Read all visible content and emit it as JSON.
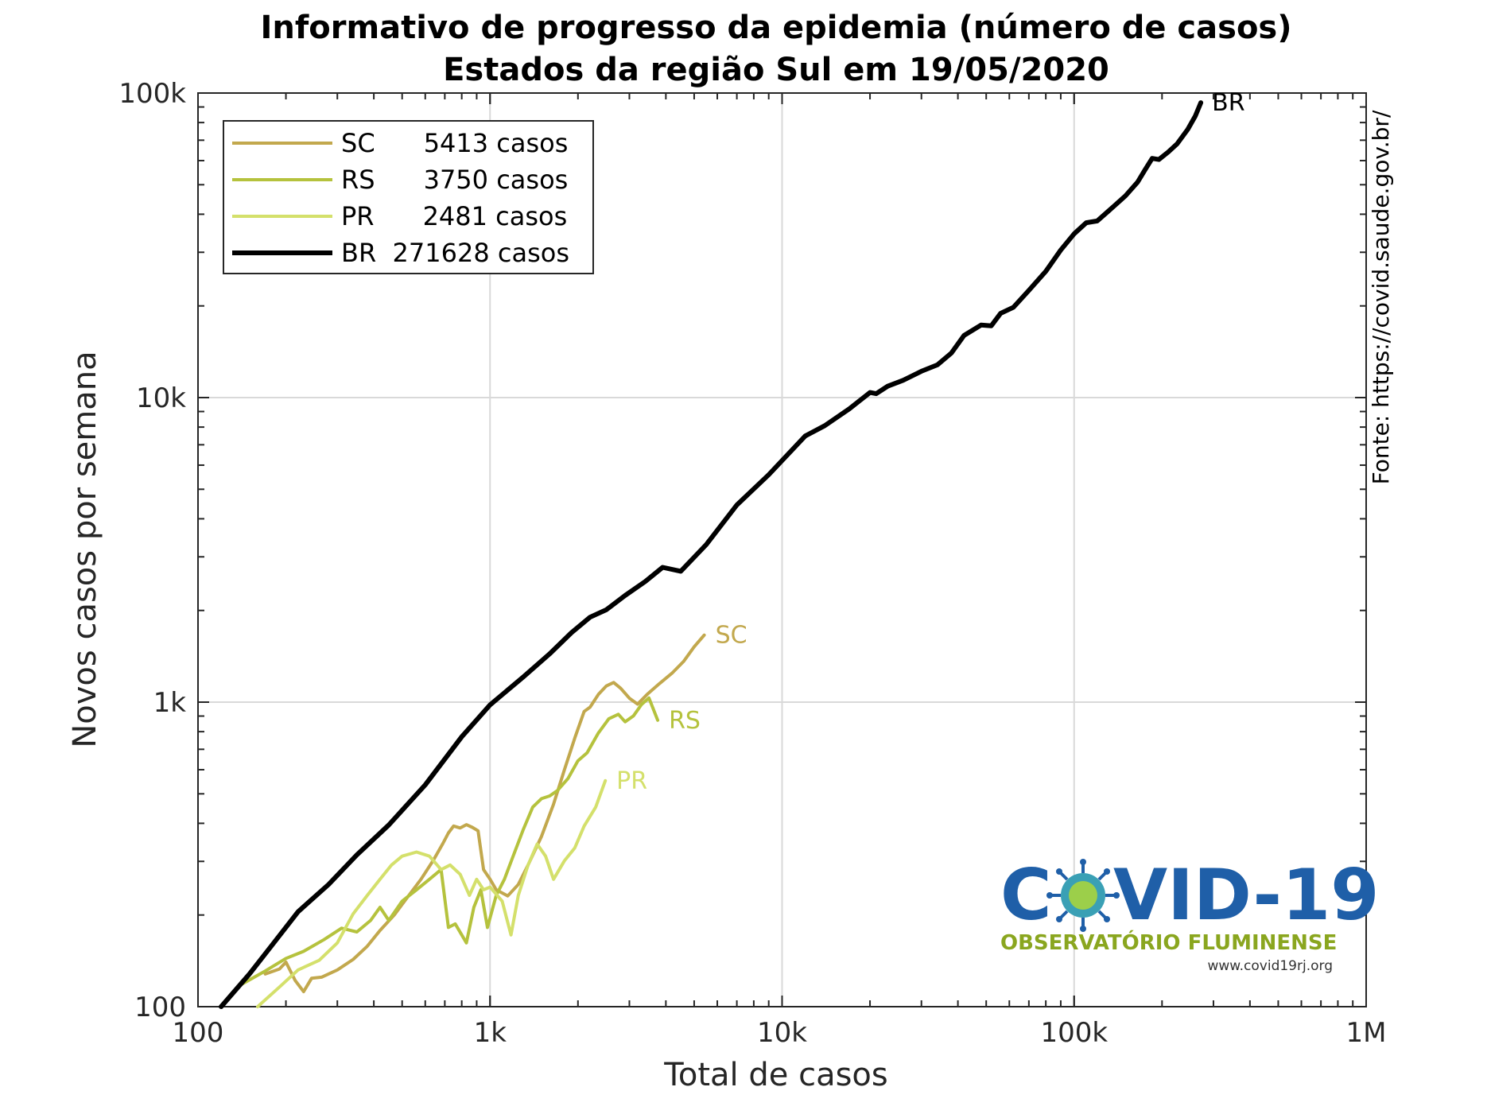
{
  "chart_data": {
    "type": "line",
    "title": "Informativo de progresso da epidemia (número de casos)",
    "subtitle": "Estados da região Sul em 19/05/2020",
    "xlabel": "Total de casos",
    "ylabel": "Novos casos por semana",
    "x_scale": "log",
    "y_scale": "log",
    "xlim": [
      100,
      1000000
    ],
    "ylim": [
      100,
      100000
    ],
    "x_ticks": [
      100,
      1000,
      10000,
      100000,
      1000000
    ],
    "x_tick_labels": [
      "100",
      "1k",
      "10k",
      "100k",
      "1M"
    ],
    "y_ticks": [
      100,
      1000,
      10000,
      100000
    ],
    "y_tick_labels": [
      "100",
      "1k",
      "10k",
      "100k"
    ],
    "grid": true,
    "legend_position": "top-left",
    "series": [
      {
        "name": "SC",
        "legend_label": "SC      5413 casos",
        "color": "#c2a84d",
        "points": [
          [
            170,
            128
          ],
          [
            190,
            133
          ],
          [
            200,
            140
          ],
          [
            215,
            122
          ],
          [
            230,
            112
          ],
          [
            245,
            124
          ],
          [
            265,
            125
          ],
          [
            300,
            132
          ],
          [
            340,
            143
          ],
          [
            380,
            158
          ],
          [
            420,
            178
          ],
          [
            470,
            200
          ],
          [
            520,
            228
          ],
          [
            580,
            262
          ],
          [
            640,
            303
          ],
          [
            690,
            344
          ],
          [
            720,
            372
          ],
          [
            750,
            392
          ],
          [
            790,
            386
          ],
          [
            830,
            396
          ],
          [
            870,
            388
          ],
          [
            910,
            378
          ],
          [
            950,
            282
          ],
          [
            1000,
            262
          ],
          [
            1050,
            242
          ],
          [
            1150,
            231
          ],
          [
            1250,
            252
          ],
          [
            1350,
            292
          ],
          [
            1500,
            362
          ],
          [
            1650,
            462
          ],
          [
            1800,
            602
          ],
          [
            1950,
            762
          ],
          [
            2100,
            932
          ],
          [
            2200,
            962
          ],
          [
            2350,
            1060
          ],
          [
            2500,
            1130
          ],
          [
            2650,
            1160
          ],
          [
            2800,
            1110
          ],
          [
            3000,
            1030
          ],
          [
            3200,
            985
          ],
          [
            3450,
            1060
          ],
          [
            3800,
            1150
          ],
          [
            4200,
            1245
          ],
          [
            4600,
            1360
          ],
          [
            5000,
            1520
          ],
          [
            5413,
            1660
          ]
        ],
        "end_label": "SC"
      },
      {
        "name": "RS",
        "legend_label": "RS      3750 casos",
        "color": "#b5c23d",
        "points": [
          [
            140,
            118
          ],
          [
            170,
            131
          ],
          [
            200,
            144
          ],
          [
            230,
            152
          ],
          [
            270,
            166
          ],
          [
            310,
            181
          ],
          [
            350,
            176
          ],
          [
            390,
            192
          ],
          [
            420,
            212
          ],
          [
            450,
            192
          ],
          [
            500,
            222
          ],
          [
            560,
            242
          ],
          [
            620,
            262
          ],
          [
            680,
            282
          ],
          [
            720,
            182
          ],
          [
            760,
            187
          ],
          [
            800,
            172
          ],
          [
            830,
            162
          ],
          [
            880,
            212
          ],
          [
            930,
            242
          ],
          [
            980,
            182
          ],
          [
            1050,
            232
          ],
          [
            1120,
            262
          ],
          [
            1200,
            312
          ],
          [
            1300,
            382
          ],
          [
            1400,
            452
          ],
          [
            1500,
            482
          ],
          [
            1600,
            492
          ],
          [
            1700,
            512
          ],
          [
            1850,
            562
          ],
          [
            2000,
            642
          ],
          [
            2150,
            682
          ],
          [
            2350,
            792
          ],
          [
            2550,
            882
          ],
          [
            2750,
            912
          ],
          [
            2900,
            862
          ],
          [
            3100,
            902
          ],
          [
            3300,
            982
          ],
          [
            3500,
            1032
          ],
          [
            3750,
            872
          ]
        ],
        "end_label": "RS"
      },
      {
        "name": "PR",
        "legend_label": "PR      2481 casos",
        "color": "#d4e06b",
        "points": [
          [
            160,
            100
          ],
          [
            190,
            116
          ],
          [
            220,
            132
          ],
          [
            260,
            142
          ],
          [
            300,
            162
          ],
          [
            340,
            202
          ],
          [
            380,
            232
          ],
          [
            420,
            262
          ],
          [
            460,
            292
          ],
          [
            500,
            312
          ],
          [
            560,
            322
          ],
          [
            620,
            312
          ],
          [
            680,
            282
          ],
          [
            730,
            292
          ],
          [
            790,
            272
          ],
          [
            850,
            232
          ],
          [
            900,
            262
          ],
          [
            950,
            242
          ],
          [
            1000,
            247
          ],
          [
            1100,
            222
          ],
          [
            1180,
            172
          ],
          [
            1250,
            232
          ],
          [
            1350,
            292
          ],
          [
            1450,
            342
          ],
          [
            1550,
            312
          ],
          [
            1650,
            262
          ],
          [
            1800,
            302
          ],
          [
            1950,
            332
          ],
          [
            2100,
            392
          ],
          [
            2300,
            452
          ],
          [
            2481,
            552
          ]
        ],
        "end_label": "PR"
      },
      {
        "name": "BR",
        "legend_label": "BR  271628 casos",
        "color": "#000000",
        "points": [
          [
            120,
            100
          ],
          [
            150,
            128
          ],
          [
            180,
            160
          ],
          [
            220,
            205
          ],
          [
            280,
            252
          ],
          [
            350,
            315
          ],
          [
            450,
            395
          ],
          [
            600,
            535
          ],
          [
            800,
            770
          ],
          [
            1000,
            980
          ],
          [
            1300,
            1210
          ],
          [
            1600,
            1440
          ],
          [
            1900,
            1690
          ],
          [
            2200,
            1900
          ],
          [
            2500,
            2010
          ],
          [
            2900,
            2240
          ],
          [
            3400,
            2490
          ],
          [
            3900,
            2770
          ],
          [
            4500,
            2690
          ],
          [
            5500,
            3290
          ],
          [
            7000,
            4440
          ],
          [
            9000,
            5580
          ],
          [
            12000,
            7480
          ],
          [
            14000,
            8090
          ],
          [
            17000,
            9190
          ],
          [
            20000,
            10390
          ],
          [
            21000,
            10300
          ],
          [
            23000,
            10900
          ],
          [
            26000,
            11400
          ],
          [
            30000,
            12200
          ],
          [
            34000,
            12800
          ],
          [
            38000,
            14000
          ],
          [
            42000,
            16000
          ],
          [
            48000,
            17300
          ],
          [
            52000,
            17200
          ],
          [
            56000,
            18900
          ],
          [
            62000,
            19800
          ],
          [
            70000,
            22500
          ],
          [
            80000,
            26000
          ],
          [
            90000,
            30500
          ],
          [
            100000,
            34500
          ],
          [
            110000,
            37500
          ],
          [
            120000,
            38000
          ],
          [
            135000,
            42000
          ],
          [
            150000,
            46000
          ],
          [
            165000,
            51000
          ],
          [
            175000,
            56000
          ],
          [
            185000,
            61000
          ],
          [
            195000,
            60500
          ],
          [
            210000,
            64000
          ],
          [
            225000,
            68000
          ],
          [
            245000,
            76000
          ],
          [
            260000,
            84000
          ],
          [
            271628,
            93000
          ]
        ],
        "end_label": "BR"
      }
    ],
    "annotations": {
      "source": "Fonte: https://covid.saude.gov.br/"
    }
  },
  "logo": {
    "text_left": "C",
    "text_right": "VID-19",
    "subtitle": "OBSERVATÓRIO FLUMINENSE",
    "url": "www.covid19rj.org",
    "primary_color": "#1f5fa8",
    "secondary_color": "#8aa61f",
    "virus_color": "#3aa0b5"
  }
}
